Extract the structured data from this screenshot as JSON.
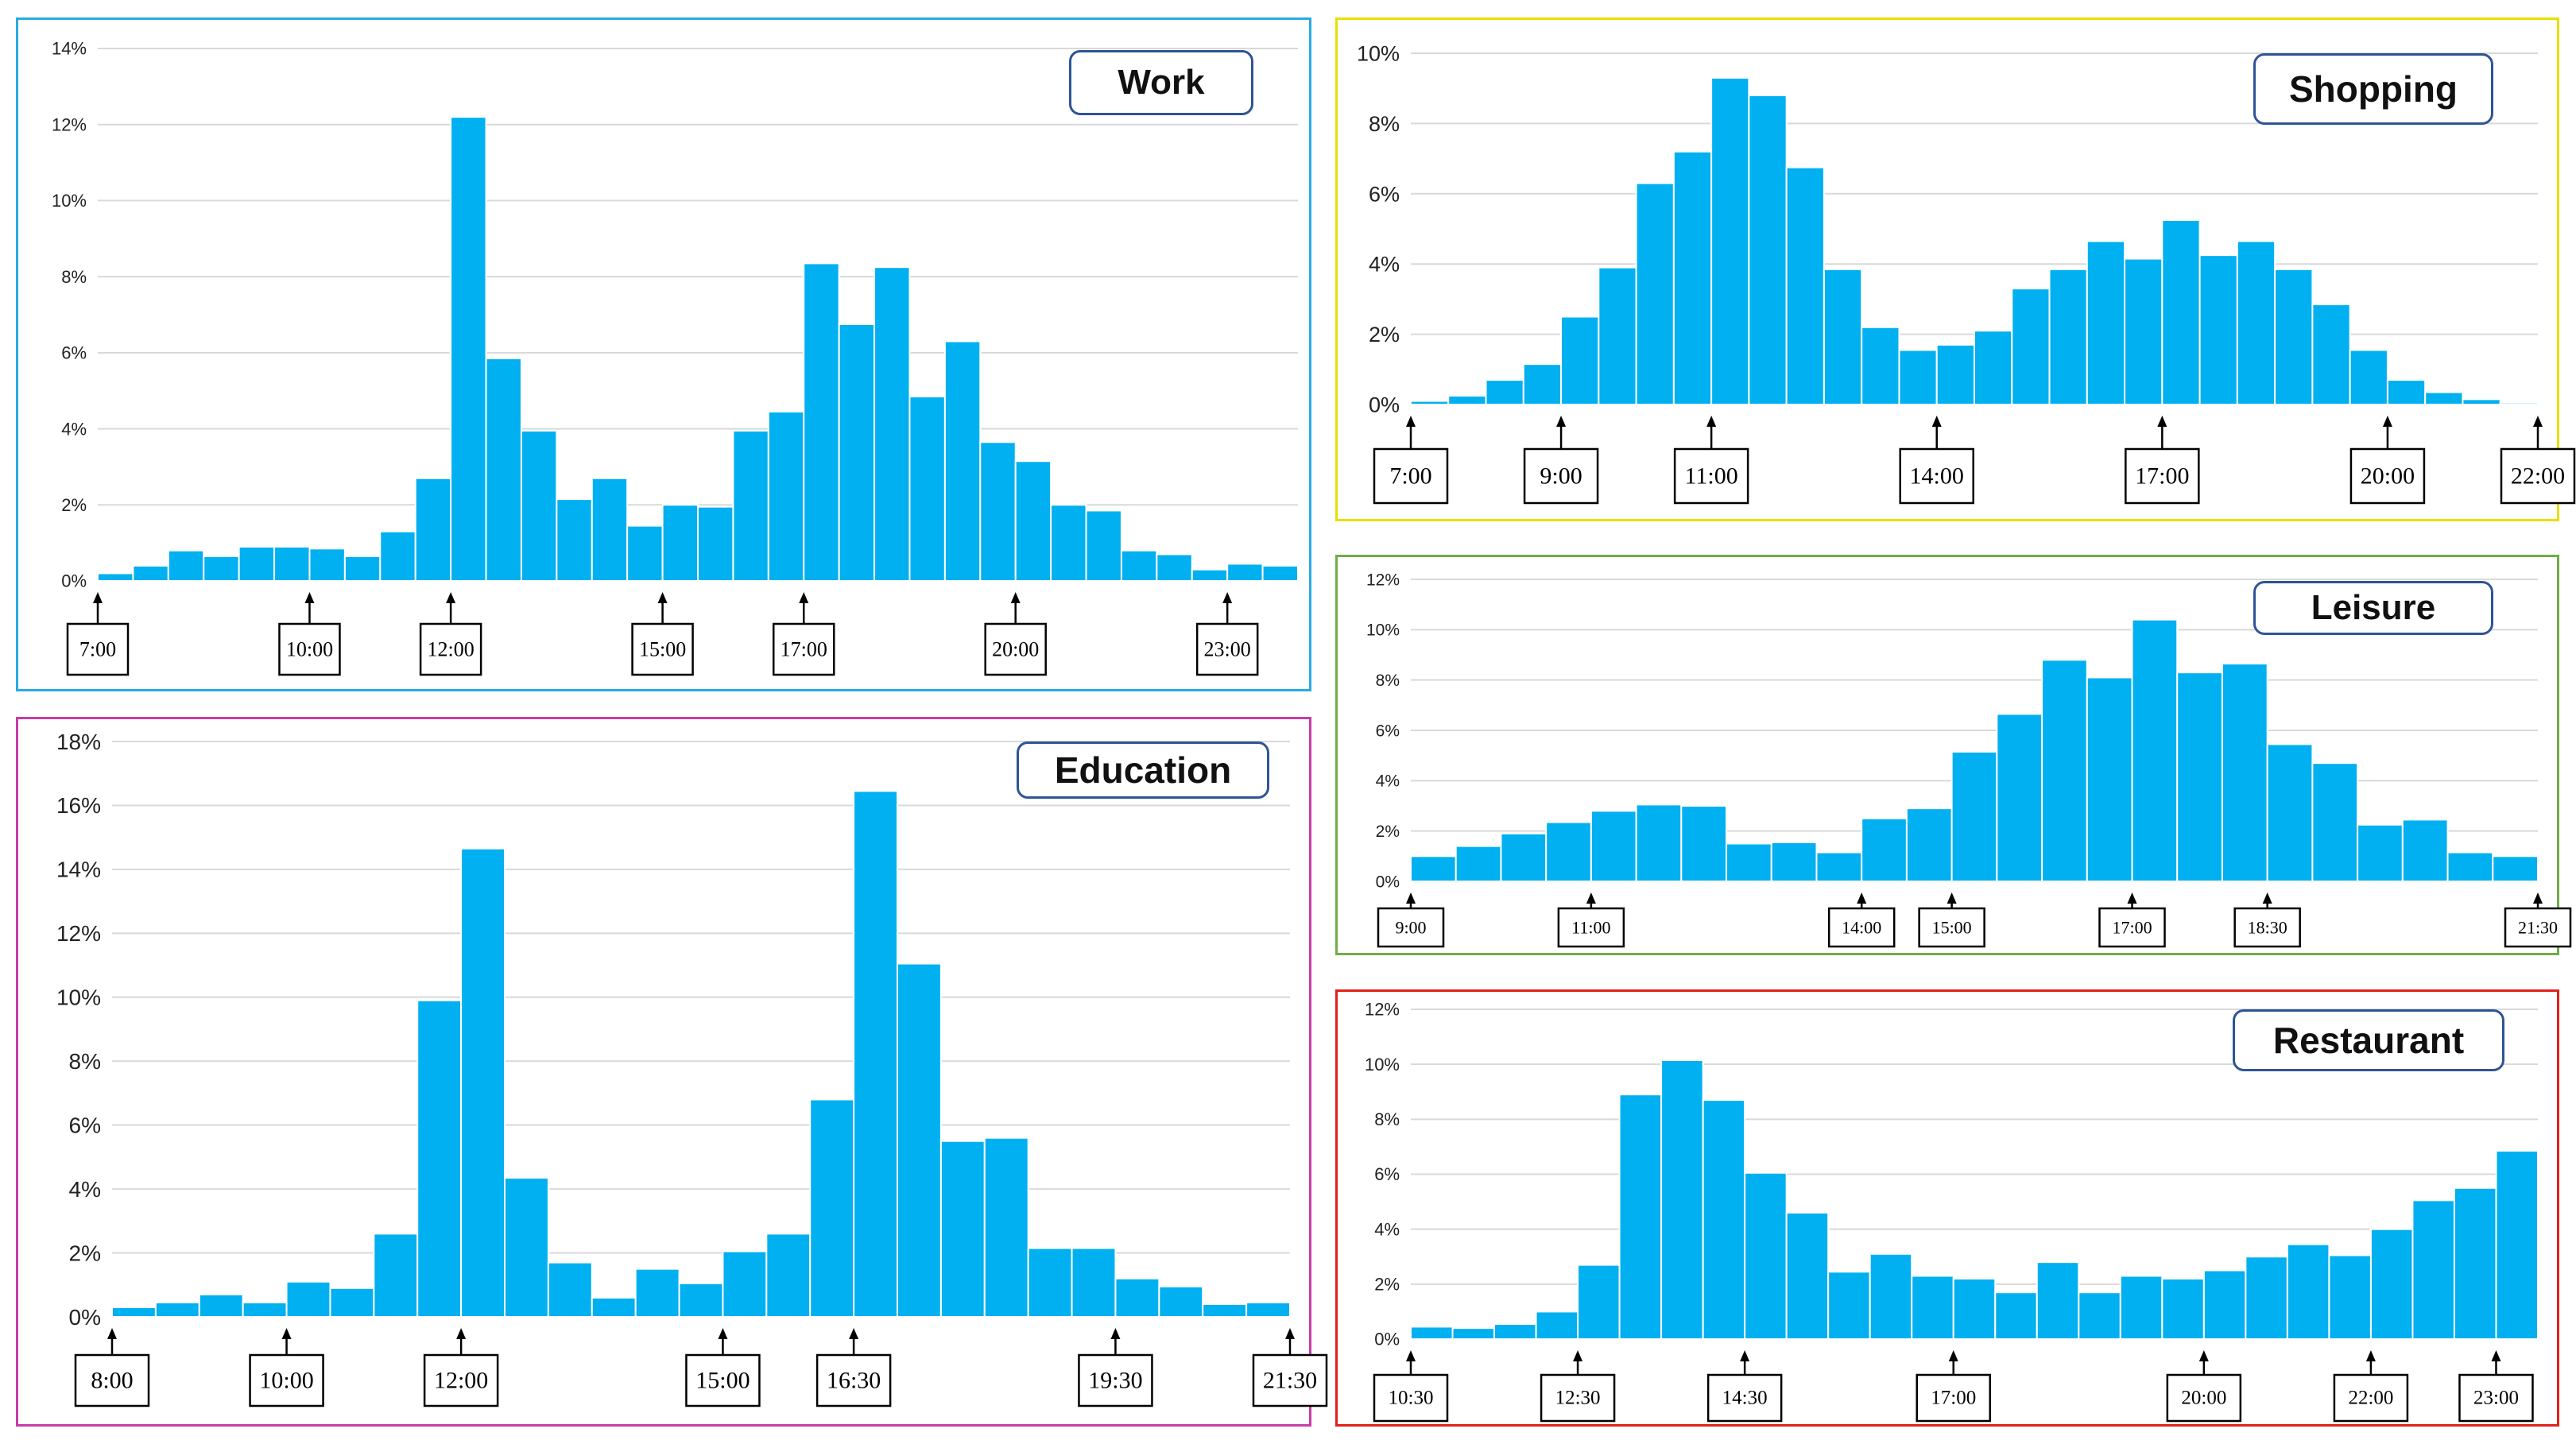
{
  "colors": {
    "bar": "#00b0f0",
    "work_border": "#29abe2",
    "education_border": "#c83ca8",
    "shopping_border": "#e8e000",
    "leisure_border": "#70ad47",
    "restaurant_border": "#e0201a",
    "title_border": "#2f5496"
  },
  "chart_data": [
    {
      "id": "work",
      "type": "bar",
      "title": "Work",
      "ylim": [
        0,
        14
      ],
      "yticks": [
        0,
        2,
        4,
        6,
        8,
        10,
        12,
        14
      ],
      "ytick_labels": [
        "0%",
        "2%",
        "4%",
        "6%",
        "8%",
        "10%",
        "12%",
        "14%"
      ],
      "values": [
        0.2,
        0.4,
        0.8,
        0.65,
        0.9,
        0.9,
        0.85,
        0.65,
        1.3,
        2.7,
        12.2,
        5.85,
        3.95,
        2.15,
        2.7,
        1.45,
        2.0,
        1.95,
        3.95,
        4.45,
        8.35,
        6.75,
        8.25,
        4.85,
        6.3,
        3.65,
        3.15,
        2.0,
        1.85,
        0.8,
        0.7,
        0.3,
        0.45,
        0.4
      ],
      "time_markers": [
        {
          "label": "7:00",
          "bar": 0
        },
        {
          "label": "10:00",
          "bar": 6
        },
        {
          "label": "12:00",
          "bar": 10
        },
        {
          "label": "15:00",
          "bar": 16
        },
        {
          "label": "17:00",
          "bar": 20
        },
        {
          "label": "20:00",
          "bar": 26
        },
        {
          "label": "23:00",
          "bar": 32
        }
      ]
    },
    {
      "id": "education",
      "type": "bar",
      "title": "Education",
      "ylim": [
        0,
        18
      ],
      "yticks": [
        0,
        2,
        4,
        6,
        8,
        10,
        12,
        14,
        16,
        18
      ],
      "ytick_labels": [
        "0%",
        "2%",
        "4%",
        "6%",
        "8%",
        "10%",
        "12%",
        "14%",
        "16%",
        "18%"
      ],
      "values": [
        0.3,
        0.45,
        0.7,
        0.45,
        1.1,
        0.9,
        2.6,
        9.9,
        14.65,
        4.35,
        1.7,
        0.6,
        1.5,
        1.05,
        2.05,
        2.6,
        6.8,
        16.45,
        11.05,
        5.5,
        5.6,
        2.15,
        2.15,
        1.2,
        0.95,
        0.4,
        0.45
      ],
      "time_markers": [
        {
          "label": "8:00",
          "bar": 0
        },
        {
          "label": "10:00",
          "bar": 4
        },
        {
          "label": "12:00",
          "bar": 8
        },
        {
          "label": "15:00",
          "bar": 14
        },
        {
          "label": "16:30",
          "bar": 17
        },
        {
          "label": "19:30",
          "bar": 23
        },
        {
          "label": "21:30",
          "bar": 27
        }
      ]
    },
    {
      "id": "shopping",
      "type": "bar",
      "title": "Shopping",
      "ylim": [
        0,
        10
      ],
      "yticks": [
        0,
        2,
        4,
        6,
        8,
        10
      ],
      "ytick_labels": [
        "0%",
        "2%",
        "4%",
        "6%",
        "8%",
        "10%"
      ],
      "values": [
        0.1,
        0.25,
        0.7,
        1.15,
        2.5,
        3.9,
        6.3,
        7.2,
        9.3,
        8.8,
        6.75,
        3.85,
        2.2,
        1.55,
        1.7,
        2.1,
        3.3,
        3.85,
        4.65,
        4.15,
        5.25,
        4.25,
        4.65,
        3.85,
        2.85,
        1.55,
        0.7,
        0.35,
        0.15,
        0.05
      ],
      "time_markers": [
        {
          "label": "7:00",
          "bar": 0
        },
        {
          "label": "9:00",
          "bar": 4
        },
        {
          "label": "11:00",
          "bar": 8
        },
        {
          "label": "14:00",
          "bar": 14
        },
        {
          "label": "17:00",
          "bar": 20
        },
        {
          "label": "20:00",
          "bar": 26
        },
        {
          "label": "22:00",
          "bar": 30
        }
      ]
    },
    {
      "id": "leisure",
      "type": "bar",
      "title": "Leisure",
      "ylim": [
        0,
        12
      ],
      "yticks": [
        0,
        2,
        4,
        6,
        8,
        10,
        12
      ],
      "ytick_labels": [
        "0%",
        "2%",
        "4%",
        "6%",
        "8%",
        "10%",
        "12%"
      ],
      "values": [
        1.0,
        1.4,
        1.9,
        2.35,
        2.8,
        3.05,
        3.0,
        1.5,
        1.55,
        1.15,
        2.5,
        2.9,
        5.15,
        6.65,
        8.8,
        8.1,
        10.4,
        8.3,
        8.65,
        5.45,
        4.7,
        2.25,
        2.45,
        1.15,
        1.0
      ],
      "time_markers": [
        {
          "label": "9:00",
          "bar": 0
        },
        {
          "label": "11:00",
          "bar": 4
        },
        {
          "label": "14:00",
          "bar": 10
        },
        {
          "label": "15:00",
          "bar": 12
        },
        {
          "label": "17:00",
          "bar": 16
        },
        {
          "label": "18:30",
          "bar": 19
        },
        {
          "label": "21:30",
          "bar": 25
        }
      ]
    },
    {
      "id": "restaurant",
      "type": "bar",
      "title": "Restaurant",
      "ylim": [
        0,
        12
      ],
      "yticks": [
        0,
        2,
        4,
        6,
        8,
        10,
        12
      ],
      "ytick_labels": [
        "0%",
        "2%",
        "4%",
        "6%",
        "8%",
        "10%",
        "12%"
      ],
      "values": [
        0.45,
        0.4,
        0.55,
        1.0,
        2.7,
        8.9,
        10.15,
        8.7,
        6.05,
        4.6,
        2.45,
        3.1,
        2.3,
        2.2,
        1.7,
        2.8,
        1.7,
        2.3,
        2.2,
        2.5,
        3.0,
        3.45,
        3.05,
        4.0,
        5.05,
        5.5,
        6.85
      ],
      "time_markers": [
        {
          "label": "10:30",
          "bar": 0
        },
        {
          "label": "12:30",
          "bar": 4
        },
        {
          "label": "14:30",
          "bar": 8
        },
        {
          "label": "17:00",
          "bar": 13
        },
        {
          "label": "20:00",
          "bar": 19
        },
        {
          "label": "22:00",
          "bar": 23
        },
        {
          "label": "23:00",
          "bar": 26
        }
      ]
    }
  ]
}
